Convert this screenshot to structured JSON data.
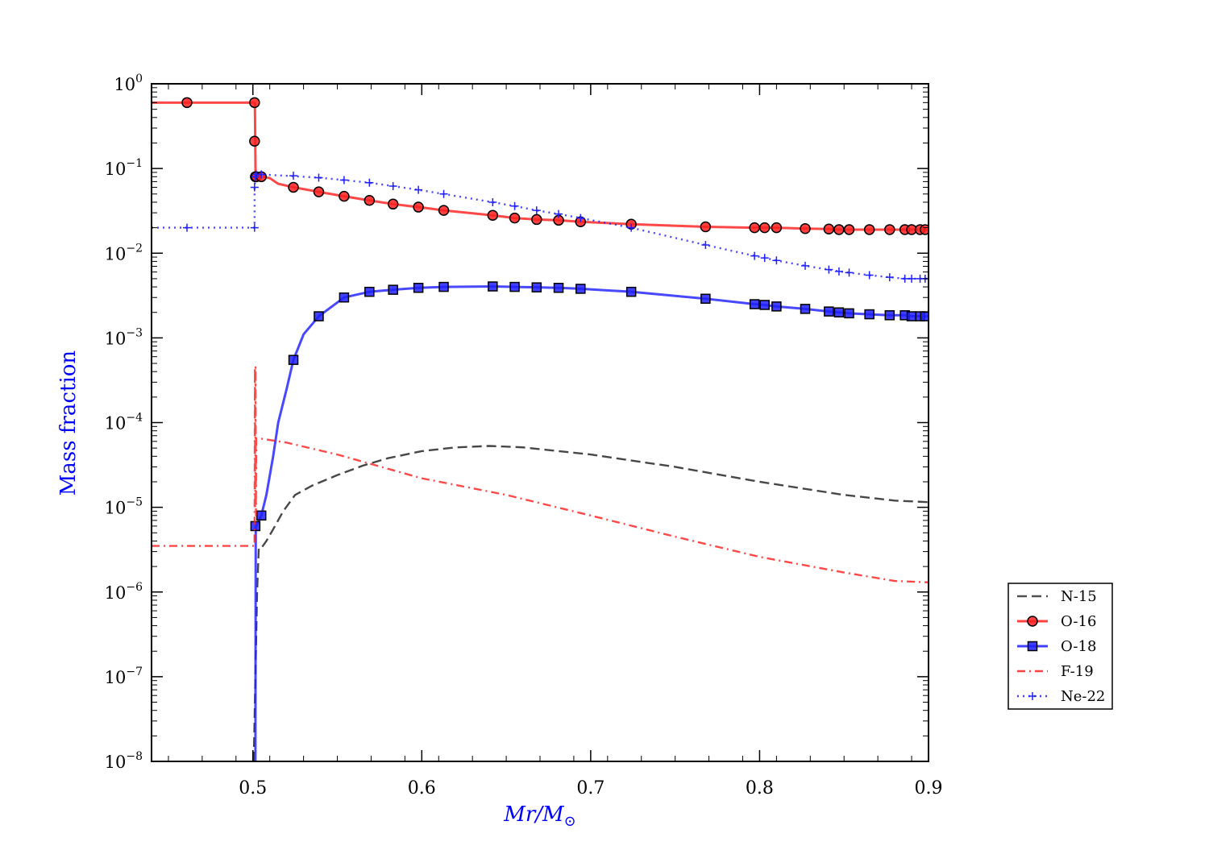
{
  "chart_data": {
    "type": "line",
    "title": "",
    "xlabel": "Mr/M⊙",
    "xlabel_main": "Mr",
    "xlabel_slash": "/",
    "xlabel_sub": "M",
    "xlabel_sun": "⊙",
    "ylabel": "Mass fraction",
    "label_color": "#0000ff",
    "xlim": [
      0.44,
      0.9
    ],
    "ylim": [
      1e-08,
      1.0
    ],
    "yscale": "log",
    "xticks": [
      {
        "value": 0.5,
        "label": "0.5"
      },
      {
        "value": 0.6,
        "label": "0.6"
      },
      {
        "value": 0.7,
        "label": "0.7"
      },
      {
        "value": 0.8,
        "label": "0.8"
      },
      {
        "value": 0.9,
        "label": "0.9"
      }
    ],
    "yticks": [
      {
        "exp": 0,
        "base": "10",
        "sup": "0"
      },
      {
        "exp": -1,
        "base": "10",
        "sup": "−1"
      },
      {
        "exp": -2,
        "base": "10",
        "sup": "−2"
      },
      {
        "exp": -3,
        "base": "10",
        "sup": "−3"
      },
      {
        "exp": -4,
        "base": "10",
        "sup": "−4"
      },
      {
        "exp": -5,
        "base": "10",
        "sup": "−5"
      },
      {
        "exp": -6,
        "base": "10",
        "sup": "−6"
      },
      {
        "exp": -7,
        "base": "10",
        "sup": "−7"
      },
      {
        "exp": -8,
        "base": "10",
        "sup": "−8"
      }
    ],
    "legend_position": "lower-right, outside plot",
    "series": [
      {
        "name": "N-15",
        "color": "#333333",
        "style": "dashed",
        "marker": "none",
        "x": [
          0.5005,
          0.5015,
          0.5025,
          0.5035,
          0.505,
          0.508,
          0.512,
          0.518,
          0.525,
          0.535,
          0.55,
          0.565,
          0.58,
          0.6,
          0.62,
          0.64,
          0.66,
          0.7,
          0.75,
          0.8,
          0.85,
          0.88,
          0.9
        ],
        "y": [
          1e-08,
          1e-07,
          1e-06,
          3.3e-06,
          3.3e-06,
          4e-06,
          5.5e-06,
          9e-06,
          1.4e-05,
          1.8e-05,
          2.4e-05,
          3.1e-05,
          3.8e-05,
          4.6e-05,
          5.1e-05,
          5.3e-05,
          5.1e-05,
          4.2e-05,
          3e-05,
          2e-05,
          1.4e-05,
          1.2e-05,
          1.15e-05
        ]
      },
      {
        "name": "O-16",
        "color": "#ff2020",
        "style": "solid",
        "marker": "circle",
        "x": [
          0.44,
          0.461,
          0.501,
          0.5012,
          0.5014,
          0.5016,
          0.502,
          0.505,
          0.51,
          0.515,
          0.524,
          0.539,
          0.554,
          0.569,
          0.583,
          0.598,
          0.613,
          0.642,
          0.655,
          0.668,
          0.681,
          0.694,
          0.724,
          0.768,
          0.797,
          0.803,
          0.81,
          0.827,
          0.841,
          0.847,
          0.853,
          0.865,
          0.877,
          0.886,
          0.89,
          0.895,
          0.898,
          0.9
        ],
        "y": [
          0.6,
          0.6,
          0.6,
          0.6,
          0.21,
          0.08,
          0.08,
          0.08,
          0.077,
          0.066,
          0.06,
          0.053,
          0.047,
          0.042,
          0.038,
          0.035,
          0.032,
          0.028,
          0.026,
          0.025,
          0.0245,
          0.0235,
          0.022,
          0.0205,
          0.02,
          0.02,
          0.02,
          0.0195,
          0.0193,
          0.019,
          0.019,
          0.019,
          0.019,
          0.019,
          0.019,
          0.019,
          0.019,
          0.019
        ],
        "markers_x": [
          0.461,
          0.501,
          0.501,
          0.5015,
          0.502,
          0.505,
          0.524,
          0.539,
          0.554,
          0.569,
          0.583,
          0.598,
          0.613,
          0.642,
          0.655,
          0.668,
          0.681,
          0.694,
          0.724,
          0.768,
          0.797,
          0.803,
          0.81,
          0.827,
          0.841,
          0.847,
          0.853,
          0.865,
          0.877,
          0.886,
          0.89,
          0.895,
          0.898
        ],
        "markers_y": [
          0.6,
          0.6,
          0.21,
          0.08,
          0.08,
          0.08,
          0.06,
          0.053,
          0.047,
          0.042,
          0.038,
          0.035,
          0.032,
          0.028,
          0.026,
          0.025,
          0.0245,
          0.0235,
          0.022,
          0.0205,
          0.02,
          0.02,
          0.02,
          0.0195,
          0.0193,
          0.019,
          0.019,
          0.019,
          0.019,
          0.019,
          0.019,
          0.019,
          0.019
        ]
      },
      {
        "name": "O-18",
        "color": "#2020ff",
        "style": "solid",
        "marker": "square",
        "x": [
          0.5015,
          0.5017,
          0.502,
          0.505,
          0.508,
          0.512,
          0.515,
          0.52,
          0.524,
          0.53,
          0.539,
          0.554,
          0.569,
          0.583,
          0.598,
          0.613,
          0.642,
          0.655,
          0.668,
          0.681,
          0.694,
          0.724,
          0.768,
          0.797,
          0.803,
          0.81,
          0.827,
          0.841,
          0.847,
          0.853,
          0.865,
          0.877,
          0.886,
          0.89,
          0.895,
          0.898,
          0.9
        ],
        "y": [
          1e-08,
          6e-06,
          6e-06,
          8e-06,
          1.4e-05,
          4e-05,
          0.0001,
          0.00025,
          0.00055,
          0.0011,
          0.0018,
          0.003,
          0.0035,
          0.0037,
          0.0039,
          0.004,
          0.00405,
          0.004,
          0.00395,
          0.0039,
          0.0038,
          0.0035,
          0.0029,
          0.0025,
          0.00245,
          0.00235,
          0.0022,
          0.00205,
          0.002,
          0.00195,
          0.0019,
          0.00185,
          0.00185,
          0.0018,
          0.0018,
          0.0018,
          0.0018
        ],
        "markers_x": [
          0.5015,
          0.505,
          0.524,
          0.539,
          0.554,
          0.569,
          0.583,
          0.598,
          0.613,
          0.642,
          0.655,
          0.668,
          0.681,
          0.694,
          0.724,
          0.768,
          0.797,
          0.803,
          0.81,
          0.827,
          0.841,
          0.847,
          0.853,
          0.865,
          0.877,
          0.886,
          0.89,
          0.895,
          0.898
        ],
        "markers_y": [
          6e-06,
          8e-06,
          0.00055,
          0.0018,
          0.003,
          0.0035,
          0.0037,
          0.0039,
          0.004,
          0.00405,
          0.004,
          0.00395,
          0.0039,
          0.0038,
          0.0035,
          0.0029,
          0.0025,
          0.00245,
          0.00235,
          0.0022,
          0.00205,
          0.002,
          0.00195,
          0.0019,
          0.00185,
          0.00185,
          0.0018,
          0.0018,
          0.0018
        ]
      },
      {
        "name": "F-19",
        "color": "#ff2020",
        "style": "dashdot",
        "marker": "none",
        "x": [
          0.44,
          0.501,
          0.501,
          0.5012,
          0.5014,
          0.5016,
          0.5018,
          0.502,
          0.504,
          0.52,
          0.55,
          0.6,
          0.65,
          0.7,
          0.75,
          0.8,
          0.85,
          0.88,
          0.9
        ],
        "y": [
          3.5e-06,
          3.5e-06,
          4e-06,
          0.00045,
          1e-05,
          0.00045,
          8e-06,
          6.5e-05,
          6.5e-05,
          5.8e-05,
          4.2e-05,
          2.2e-05,
          1.4e-05,
          8e-06,
          4.5e-06,
          2.6e-06,
          1.7e-06,
          1.35e-06,
          1.3e-06
        ]
      },
      {
        "name": "Ne-22",
        "color": "#2020ff",
        "style": "dotted",
        "marker": "plus",
        "x": [
          0.44,
          0.461,
          0.501,
          0.501,
          0.5015,
          0.502,
          0.505,
          0.52,
          0.539,
          0.554,
          0.569,
          0.583,
          0.598,
          0.613,
          0.642,
          0.655,
          0.668,
          0.681,
          0.694,
          0.724,
          0.768,
          0.797,
          0.803,
          0.81,
          0.827,
          0.841,
          0.847,
          0.853,
          0.865,
          0.877,
          0.886,
          0.89,
          0.895,
          0.898,
          0.9
        ],
        "y": [
          0.02,
          0.02,
          0.02,
          0.06,
          0.08,
          0.085,
          0.085,
          0.082,
          0.078,
          0.073,
          0.068,
          0.062,
          0.056,
          0.05,
          0.04,
          0.036,
          0.032,
          0.029,
          0.026,
          0.02,
          0.0125,
          0.0093,
          0.0088,
          0.0082,
          0.0071,
          0.0064,
          0.0061,
          0.0059,
          0.0055,
          0.0052,
          0.005,
          0.005,
          0.005,
          0.005,
          0.005
        ],
        "markers_x": [
          0.461,
          0.501,
          0.501,
          0.5015,
          0.502,
          0.505,
          0.524,
          0.539,
          0.554,
          0.569,
          0.583,
          0.598,
          0.613,
          0.642,
          0.655,
          0.668,
          0.681,
          0.694,
          0.724,
          0.768,
          0.797,
          0.803,
          0.81,
          0.827,
          0.841,
          0.847,
          0.853,
          0.865,
          0.877,
          0.886,
          0.89,
          0.895,
          0.898
        ],
        "markers_y": [
          0.02,
          0.02,
          0.06,
          0.08,
          0.085,
          0.085,
          0.082,
          0.078,
          0.073,
          0.068,
          0.062,
          0.056,
          0.05,
          0.04,
          0.036,
          0.032,
          0.029,
          0.026,
          0.02,
          0.0125,
          0.0093,
          0.0088,
          0.0082,
          0.0071,
          0.0064,
          0.0061,
          0.0059,
          0.0055,
          0.0052,
          0.005,
          0.005,
          0.005,
          0.005
        ]
      }
    ]
  }
}
